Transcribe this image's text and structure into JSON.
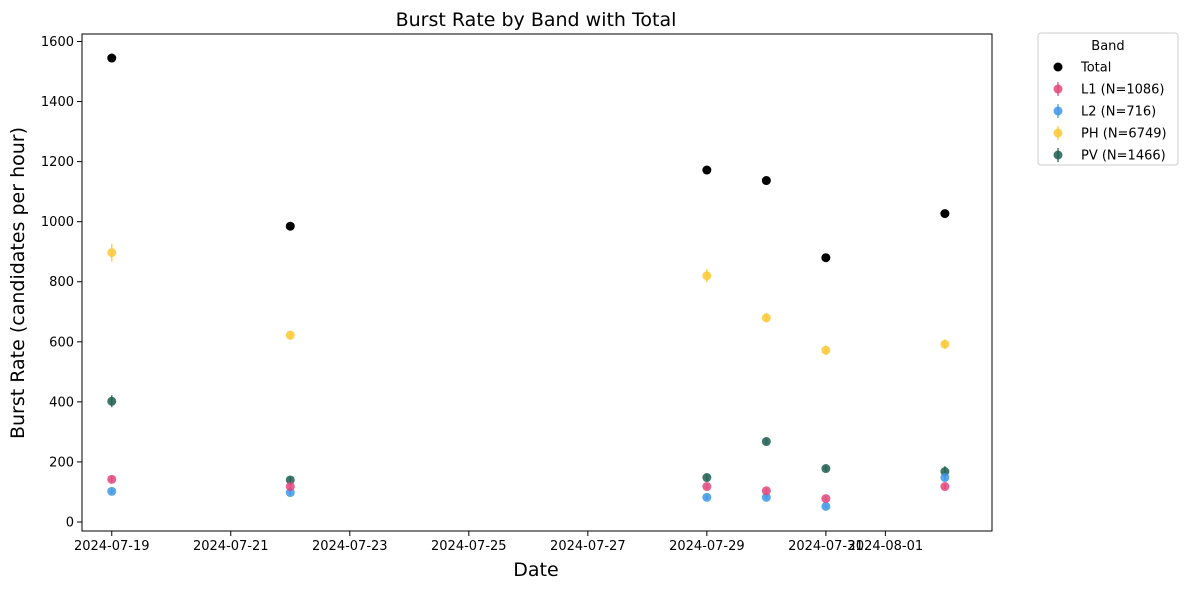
{
  "chart_data": {
    "type": "scatter",
    "title": "Burst Rate by Band with Total",
    "xlabel": "Date",
    "ylabel": "Burst Rate (candidates per hour)",
    "ylim": [
      -30,
      1625
    ],
    "xlim": [
      "2024-07-18T12:00",
      "2024-08-02T19:00"
    ],
    "x_ticks": [
      "2024-07-19",
      "2024-07-21",
      "2024-07-23",
      "2024-07-25",
      "2024-07-27",
      "2024-07-29",
      "2024-07-31",
      "2024-08-01"
    ],
    "y_ticks": [
      0,
      200,
      400,
      600,
      800,
      1000,
      1200,
      1400,
      1600
    ],
    "grid": false,
    "legend": {
      "title": "Band",
      "placement": "outside-top-right"
    },
    "series": [
      {
        "name": "Total",
        "color": "#000000",
        "points": [
          {
            "x": "2024-07-19",
            "y": 1545
          },
          {
            "x": "2024-07-22",
            "y": 985
          },
          {
            "x": "2024-07-29",
            "y": 1172
          },
          {
            "x": "2024-07-30",
            "y": 1137
          },
          {
            "x": "2024-07-31",
            "y": 880
          },
          {
            "x": "2024-08-02",
            "y": 1027
          }
        ]
      },
      {
        "name": "L1 (N=1086)",
        "color": "#e0457b",
        "error_bars": true,
        "points": [
          {
            "x": "2024-07-19",
            "y": 142,
            "err": 10
          },
          {
            "x": "2024-07-22",
            "y": 118,
            "err": 8
          },
          {
            "x": "2024-07-29",
            "y": 118,
            "err": 8
          },
          {
            "x": "2024-07-30",
            "y": 104,
            "err": 8
          },
          {
            "x": "2024-07-31",
            "y": 78,
            "err": 7
          },
          {
            "x": "2024-08-02",
            "y": 118,
            "err": 8
          }
        ]
      },
      {
        "name": "L2 (N=716)",
        "color": "#3d96e6",
        "error_bars": true,
        "points": [
          {
            "x": "2024-07-19",
            "y": 102,
            "err": 9
          },
          {
            "x": "2024-07-22",
            "y": 98,
            "err": 8
          },
          {
            "x": "2024-07-29",
            "y": 82,
            "err": 7
          },
          {
            "x": "2024-07-30",
            "y": 82,
            "err": 7
          },
          {
            "x": "2024-07-31",
            "y": 52,
            "err": 6
          },
          {
            "x": "2024-08-02",
            "y": 148,
            "err": 9
          }
        ]
      },
      {
        "name": "PH (N=6749)",
        "color": "#fdc834",
        "error_bars": true,
        "points": [
          {
            "x": "2024-07-19",
            "y": 897,
            "err": 30
          },
          {
            "x": "2024-07-22",
            "y": 622,
            "err": 15
          },
          {
            "x": "2024-07-29",
            "y": 820,
            "err": 22
          },
          {
            "x": "2024-07-30",
            "y": 680,
            "err": 16
          },
          {
            "x": "2024-07-31",
            "y": 572,
            "err": 16
          },
          {
            "x": "2024-08-02",
            "y": 592,
            "err": 16
          }
        ]
      },
      {
        "name": "PV (N=1466)",
        "color": "#1d5e50",
        "error_bars": true,
        "points": [
          {
            "x": "2024-07-19",
            "y": 402,
            "err": 20
          },
          {
            "x": "2024-07-22",
            "y": 140,
            "err": 10
          },
          {
            "x": "2024-07-29",
            "y": 148,
            "err": 10
          },
          {
            "x": "2024-07-30",
            "y": 268,
            "err": 10
          },
          {
            "x": "2024-07-31",
            "y": 178,
            "err": 10
          },
          {
            "x": "2024-08-02",
            "y": 168,
            "err": 18
          }
        ]
      }
    ]
  }
}
